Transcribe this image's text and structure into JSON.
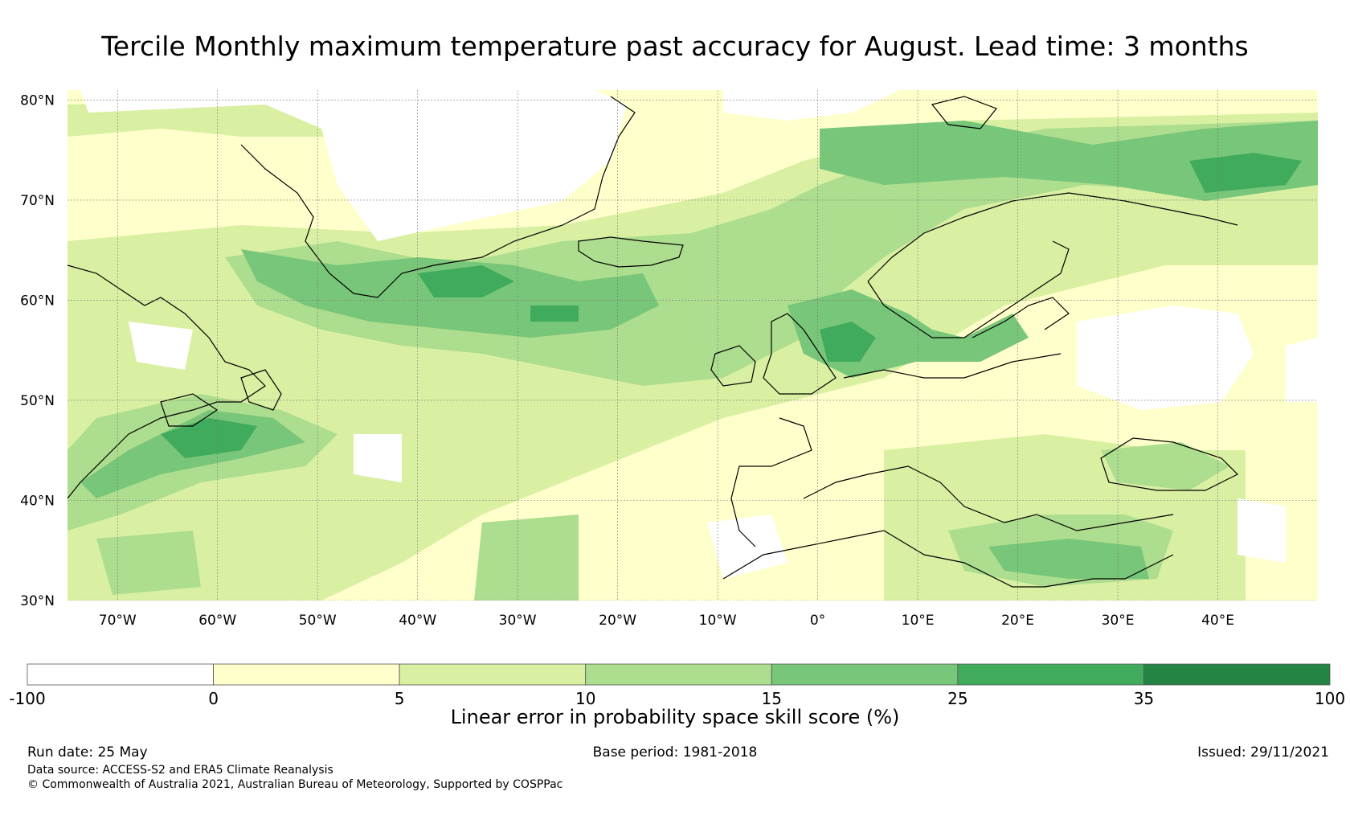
{
  "title": "Tercile Monthly maximum temperature past accuracy for August. Lead time: 3 months",
  "map": {
    "lon_range": [
      -75,
      50
    ],
    "lat_range": [
      30,
      81
    ],
    "lat_ticks": [
      {
        "value": 30,
        "label": "30°N"
      },
      {
        "value": 40,
        "label": "40°N"
      },
      {
        "value": 50,
        "label": "50°N"
      },
      {
        "value": 60,
        "label": "60°N"
      },
      {
        "value": 70,
        "label": "70°N"
      },
      {
        "value": 80,
        "label": "80°N"
      }
    ],
    "lon_ticks": [
      {
        "value": -70,
        "label": "70°W"
      },
      {
        "value": -60,
        "label": "60°W"
      },
      {
        "value": -50,
        "label": "50°W"
      },
      {
        "value": -40,
        "label": "40°W"
      },
      {
        "value": -30,
        "label": "30°W"
      },
      {
        "value": -20,
        "label": "20°W"
      },
      {
        "value": -10,
        "label": "10°W"
      },
      {
        "value": 0,
        "label": "0°"
      },
      {
        "value": 10,
        "label": "10°E"
      },
      {
        "value": 20,
        "label": "20°E"
      },
      {
        "value": 30,
        "label": "30°E"
      },
      {
        "value": 40,
        "label": "40°E"
      }
    ],
    "gridlines": true
  },
  "colorbar": {
    "boundaries": [
      "-100",
      "0",
      "5",
      "10",
      "15",
      "25",
      "35",
      "100"
    ],
    "colors": [
      "#ffffff",
      "#ffffcc",
      "#d9f0a3",
      "#addd8e",
      "#78c679",
      "#41ab5d",
      "#238443"
    ],
    "title": "Linear error in probability space skill score (%)"
  },
  "footer": {
    "run_date": "Run date: 25 May",
    "base_period": "Base period: 1981-2018",
    "issued": "Issued: 29/11/2021",
    "data_source": "Data source: ACCESS-S2 and ERA5 Climate Reanalysis",
    "copyright": "© Commonwealth of Australia 2021, Australian Bureau of Meteorology, Supported by COSPPac"
  }
}
